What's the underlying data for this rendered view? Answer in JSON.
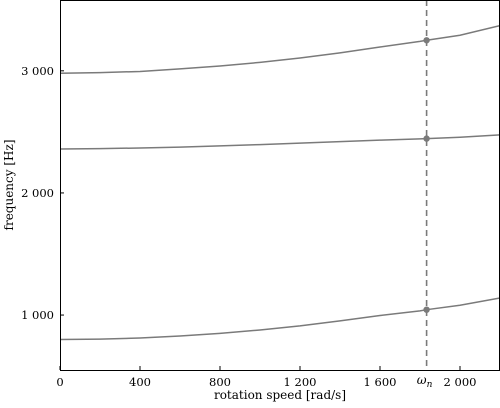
{
  "chart_data": {
    "type": "line",
    "title": "",
    "xlabel": "rotation speed [rad/s]",
    "ylabel": "frequency [Hz]",
    "xlim": [
      0,
      2200
    ],
    "ylim": [
      550,
      3580
    ],
    "x_ticks": [
      0,
      400,
      800,
      1200,
      1600,
      2000
    ],
    "x_tick_labels": [
      "0",
      "400",
      "800",
      "1 200",
      "1 600",
      "2 000"
    ],
    "y_ticks": [
      1000,
      2000,
      3000
    ],
    "y_tick_labels": [
      "1 000",
      "2 000",
      "3 000"
    ],
    "grid": false,
    "legend": "none",
    "series": [
      {
        "x": [
          0,
          200,
          400,
          600,
          800,
          1000,
          1200,
          1400,
          1600,
          1800,
          1833,
          2000,
          2200
        ],
        "values": [
          800,
          803,
          812,
          828,
          850,
          878,
          911,
          952,
          996,
          1034,
          1044,
          1080,
          1140
        ],
        "color": "#7a7a7a"
      },
      {
        "x": [
          0,
          200,
          400,
          600,
          800,
          1000,
          1200,
          1400,
          1600,
          1800,
          1833,
          2000,
          2200
        ],
        "values": [
          2360,
          2363,
          2368,
          2375,
          2385,
          2396,
          2408,
          2420,
          2432,
          2443,
          2445,
          2456,
          2475
        ],
        "color": "#7a7a7a"
      },
      {
        "x": [
          0,
          200,
          400,
          600,
          800,
          1000,
          1200,
          1400,
          1600,
          1800,
          1833,
          2000,
          2200
        ],
        "values": [
          2980,
          2985,
          2995,
          3016,
          3040,
          3069,
          3105,
          3147,
          3195,
          3241,
          3250,
          3291,
          3370
        ],
        "color": "#7a7a7a"
      }
    ],
    "vertical_line": {
      "x": 1833,
      "label": "ω",
      "label_subscript": "n",
      "color": "#7a7a7a",
      "style": "dashed"
    },
    "highlight_points": [
      {
        "x": 1833,
        "y": 1044
      },
      {
        "x": 1833,
        "y": 2445
      },
      {
        "x": 1833,
        "y": 3250
      }
    ],
    "colors": {
      "curve": "#7a7a7a",
      "axis": "#000000"
    }
  }
}
